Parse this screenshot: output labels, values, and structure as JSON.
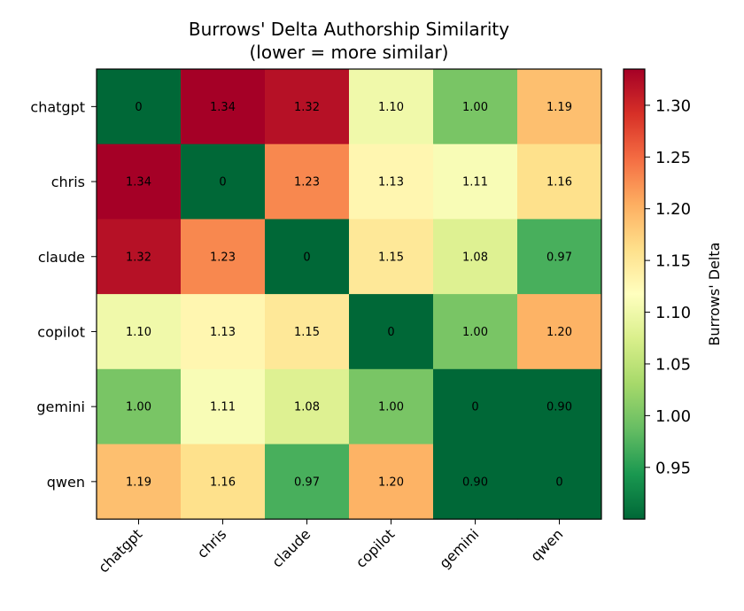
{
  "chart_data": {
    "type": "heatmap",
    "title_lines": [
      "Burrows' Delta Authorship Similarity",
      "(lower = more similar)"
    ],
    "rows": [
      "chatgpt",
      "chris",
      "claude",
      "copilot",
      "gemini",
      "qwen"
    ],
    "cols": [
      "chatgpt",
      "chris",
      "claude",
      "copilot",
      "gemini",
      "qwen"
    ],
    "values": [
      [
        0,
        1.34,
        1.32,
        1.1,
        1.0,
        1.19
      ],
      [
        1.34,
        0,
        1.23,
        1.13,
        1.11,
        1.16
      ],
      [
        1.32,
        1.23,
        0,
        1.15,
        1.08,
        0.97
      ],
      [
        1.1,
        1.13,
        1.15,
        0,
        1.0,
        1.2
      ],
      [
        1.0,
        1.11,
        1.08,
        1.0,
        0,
        0.9
      ],
      [
        1.19,
        1.16,
        0.97,
        1.2,
        0.9,
        0
      ]
    ],
    "cell_labels": [
      [
        "0",
        "1.34",
        "1.32",
        "1.10",
        "1.00",
        "1.19"
      ],
      [
        "1.34",
        "0",
        "1.23",
        "1.13",
        "1.11",
        "1.16"
      ],
      [
        "1.32",
        "1.23",
        "0",
        "1.15",
        "1.08",
        "0.97"
      ],
      [
        "1.10",
        "1.13",
        "1.15",
        "0",
        "1.00",
        "1.20"
      ],
      [
        "1.00",
        "1.11",
        "1.08",
        "1.00",
        "0",
        "0.90"
      ],
      [
        "1.19",
        "1.16",
        "0.97",
        "1.20",
        "0.90",
        "0"
      ]
    ],
    "colormap": "RdYlGn_r",
    "color_range": [
      0.9,
      1.335
    ],
    "colorbar": {
      "label": "Burrows' Delta",
      "ticks": [
        0.95,
        1.0,
        1.05,
        1.1,
        1.15,
        1.2,
        1.25,
        1.3
      ],
      "tick_labels": [
        "0.95",
        "1.00",
        "1.05",
        "1.10",
        "1.15",
        "1.20",
        "1.25",
        "1.30"
      ]
    },
    "x_tick_rotation_deg": 45
  }
}
